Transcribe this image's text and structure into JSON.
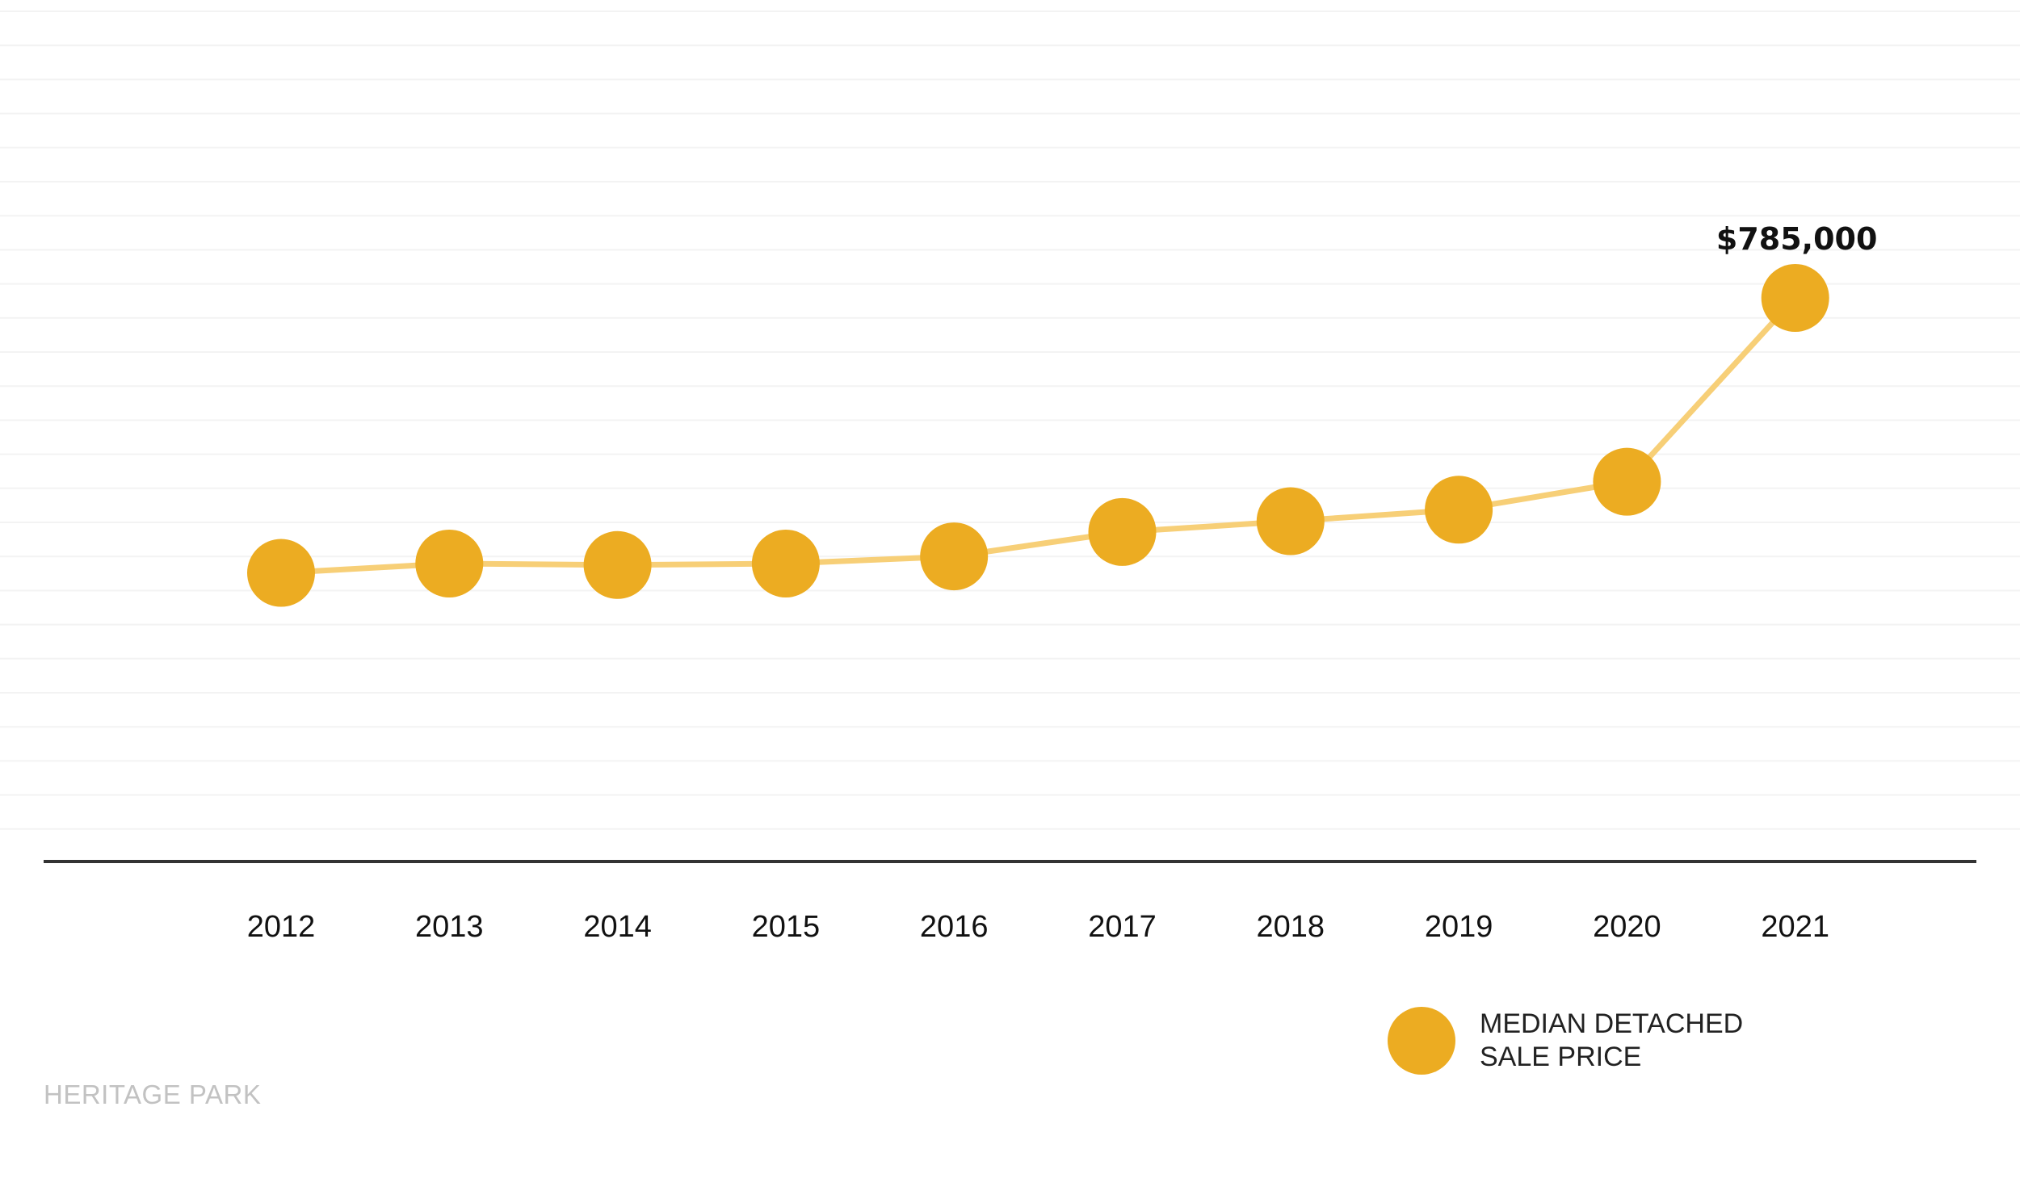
{
  "footer_label": "HERITAGE PARK",
  "legend": {
    "lines": [
      "MEDIAN DETACHED",
      "SALE PRICE"
    ]
  },
  "colors": {
    "marker": "#ECAC22",
    "line": "#F7CF77",
    "baseline": "#333333",
    "gridline": "#f3f3f3",
    "footer": "#c2c2c2"
  },
  "chart_data": {
    "type": "line",
    "categories": [
      "2012",
      "2013",
      "2014",
      "2015",
      "2016",
      "2017",
      "2018",
      "2019",
      "2020",
      "2021"
    ],
    "series": [
      {
        "name": "MEDIAN DETACHED SALE PRICE",
        "values": [
          402000,
          415000,
          413000,
          415000,
          425000,
          459000,
          474000,
          490000,
          529000,
          785000
        ]
      }
    ],
    "data_labels": [
      {
        "category": "2021",
        "text": "$785,000"
      }
    ],
    "ylim": [
      0,
      1200000
    ],
    "grid": true,
    "legend_position": "bottom-right",
    "title": "",
    "xlabel": "",
    "ylabel": ""
  }
}
